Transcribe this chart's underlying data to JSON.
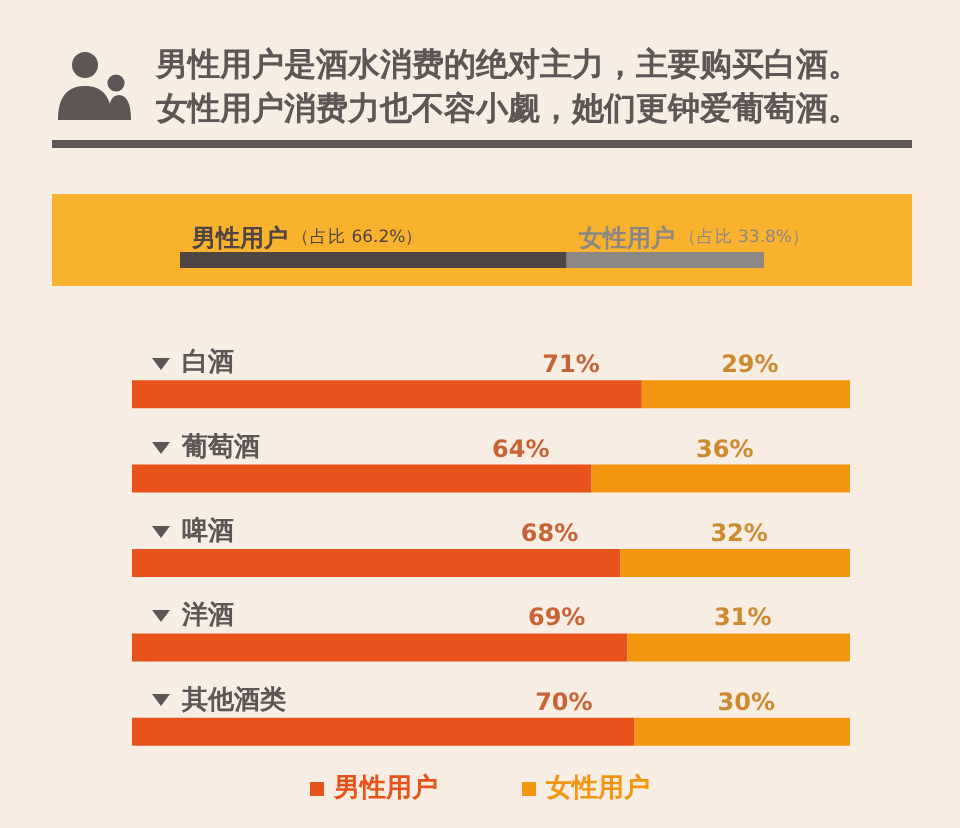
{
  "chart_data": [
    {
      "type": "bar",
      "title": "男性用户是酒水消费的绝对主力，主要购买白酒。女性用户消费力也不容小觑，她们更钟爱葡萄酒。",
      "orientation": "horizontal",
      "stacked": true,
      "categories": [
        null
      ],
      "series": [
        {
          "name": "男性用户",
          "color": "#4e4442",
          "values": [
            66.2
          ],
          "value_labels": [
            "（占比 66.2%）"
          ]
        },
        {
          "name": "女性用户",
          "color": "#8c8784",
          "values": [
            33.8
          ],
          "value_labels": [
            "（占比 33.8%）"
          ]
        }
      ],
      "xlim": [
        0,
        100
      ],
      "tick_labels": false
    },
    {
      "type": "bar",
      "orientation": "horizontal",
      "stacked": true,
      "categories": [
        "白酒",
        "葡萄酒",
        "啤酒",
        "洋酒",
        "其他酒类"
      ],
      "series": [
        {
          "name": "男性用户",
          "color": "#e8531c",
          "values": [
            71,
            64,
            68,
            69,
            70
          ],
          "value_labels": [
            "71%",
            "64%",
            "68%",
            "69%",
            "70%"
          ]
        },
        {
          "name": "女性用户",
          "color": "#f2960f",
          "values": [
            29,
            36,
            32,
            31,
            30
          ],
          "value_labels": [
            "29%",
            "36%",
            "32%",
            "31%",
            "30%"
          ]
        }
      ],
      "xlim": [
        0,
        100
      ],
      "tick_labels": "y",
      "legend": "bottom"
    }
  ]
}
